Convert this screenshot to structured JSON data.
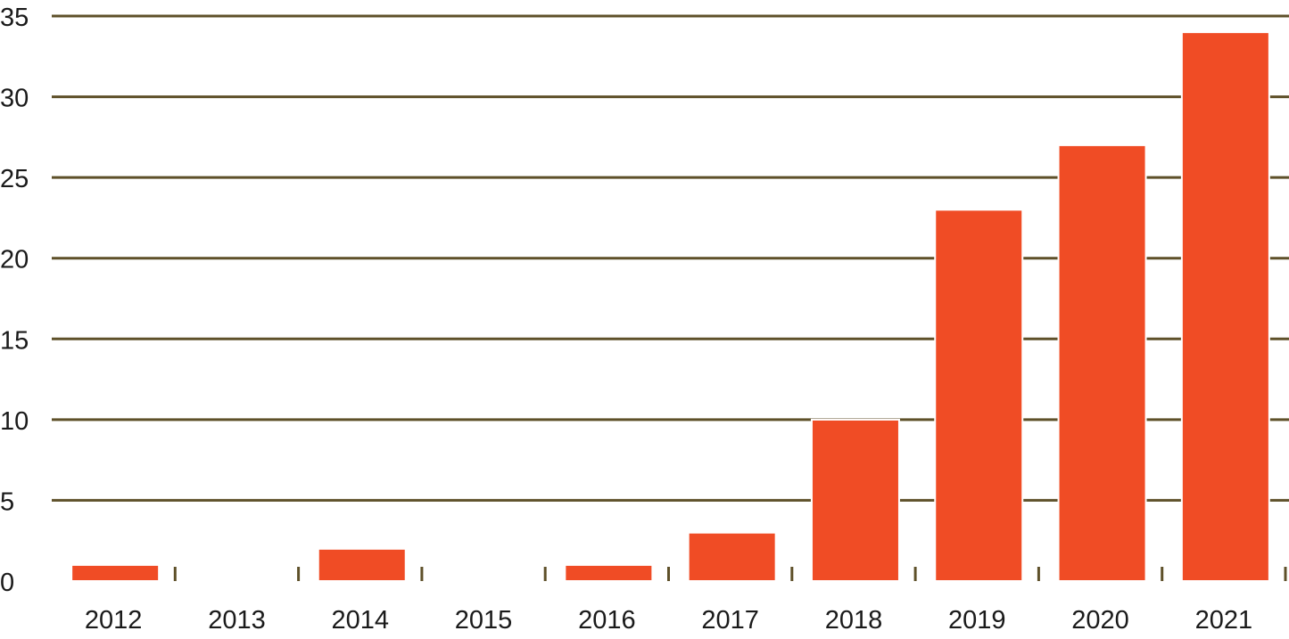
{
  "chart_data": {
    "type": "bar",
    "title": "",
    "xlabel": "",
    "ylabel": "",
    "categories": [
      "2012",
      "2013",
      "2014",
      "2015",
      "2016",
      "2017",
      "2018",
      "2019",
      "2020",
      "2021"
    ],
    "values": [
      1,
      0,
      2,
      0,
      1,
      3,
      10,
      23,
      27,
      34
    ],
    "ylim": [
      0,
      35
    ],
    "yticks": [
      "0",
      "5",
      "10",
      "15",
      "20",
      "25",
      "30",
      "35"
    ],
    "grid": true,
    "legend": "none",
    "colors": {
      "bar": "#f04c25",
      "grid": "#5e5029",
      "text": "#1a1a1a"
    }
  }
}
